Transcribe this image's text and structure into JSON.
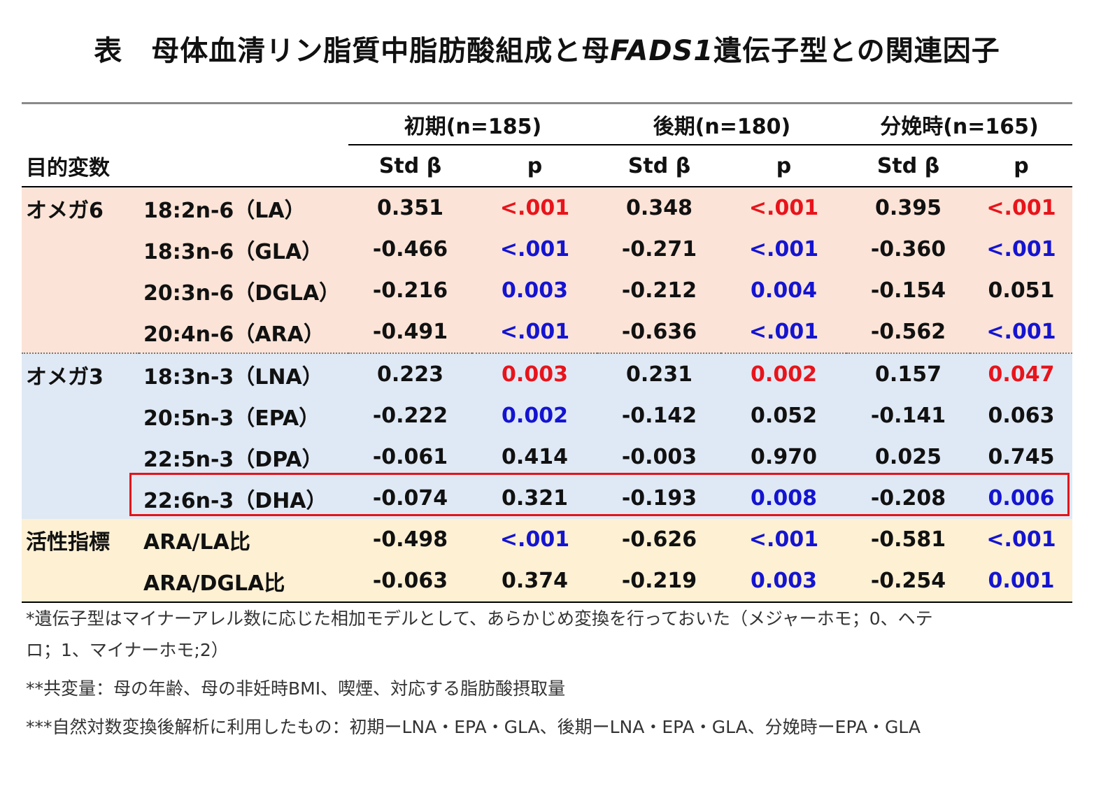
{
  "title": {
    "prefix": "表　母体血清リン脂質中脂肪酸組成と母",
    "gene": "FADS1",
    "suffix": "遺伝子型との関連因子"
  },
  "header": {
    "outcome_label": "目的変数",
    "groups": [
      "初期(n=185)",
      "後期(n=180)",
      "分娩時(n=165)"
    ],
    "std_beta": "Std β",
    "p": "p"
  },
  "colors": {
    "omega6_bg": "#fbe3d7",
    "omega3_bg": "#dfe9f5",
    "activity_bg": "#fdf0d3",
    "sig_pos": "#e8141b",
    "sig_neg": "#1414d0",
    "highlight": "#e3141b"
  },
  "rows": [
    {
      "category": "オメガ6",
      "fa": "18:2n-6（LA）",
      "vals": [
        "0.351",
        "<.001",
        "0.348",
        "<.001",
        "0.395",
        "<.001"
      ],
      "pcol": [
        "red",
        "red",
        "red"
      ]
    },
    {
      "category": "",
      "fa": "18:3n-6（GLA）",
      "vals": [
        "-0.466",
        "<.001",
        "-0.271",
        "<.001",
        "-0.360",
        "<.001"
      ],
      "pcol": [
        "blue",
        "blue",
        "blue"
      ]
    },
    {
      "category": "",
      "fa": "20:3n-6（DGLA）",
      "vals": [
        "-0.216",
        "0.003",
        "-0.212",
        "0.004",
        "-0.154",
        "0.051"
      ],
      "pcol": [
        "blue",
        "blue",
        "blk"
      ]
    },
    {
      "category": "",
      "fa": "20:4n-6（ARA）",
      "vals": [
        "-0.491",
        "<.001",
        "-0.636",
        "<.001",
        "-0.562",
        "<.001"
      ],
      "pcol": [
        "blue",
        "blue",
        "blue"
      ]
    },
    {
      "category": "オメガ3",
      "fa": "18:3n-3（LNA）",
      "vals": [
        "0.223",
        "0.003",
        "0.231",
        "0.002",
        "0.157",
        "0.047"
      ],
      "pcol": [
        "red",
        "red",
        "red"
      ]
    },
    {
      "category": "",
      "fa": "20:5n-3（EPA）",
      "vals": [
        "-0.222",
        "0.002",
        "-0.142",
        "0.052",
        "-0.141",
        "0.063"
      ],
      "pcol": [
        "blue",
        "blk",
        "blk"
      ]
    },
    {
      "category": "",
      "fa": "22:5n-3（DPA）",
      "vals": [
        "-0.061",
        "0.414",
        "-0.003",
        "0.970",
        "0.025",
        "0.745"
      ],
      "pcol": [
        "blk",
        "blk",
        "blk"
      ]
    },
    {
      "category": "",
      "fa": "22:6n-3（DHA）",
      "vals": [
        "-0.074",
        "0.321",
        "-0.193",
        "0.008",
        "-0.208",
        "0.006"
      ],
      "pcol": [
        "blk",
        "blue",
        "blue"
      ]
    },
    {
      "category": "活性指標",
      "fa": "ARA/LA比",
      "vals": [
        "-0.498",
        "<.001",
        "-0.626",
        "<.001",
        "-0.581",
        "<.001"
      ],
      "pcol": [
        "blue",
        "blue",
        "blue"
      ]
    },
    {
      "category": "",
      "fa": "ARA/DGLA比",
      "vals": [
        "-0.063",
        "0.374",
        "-0.219",
        "0.003",
        "-0.254",
        "0.001"
      ],
      "pcol": [
        "blk",
        "blue",
        "blue"
      ]
    }
  ],
  "notes": [
    "*遺伝子型はマイナーアレル数に応じた相加モデルとして、あらかじめ変換を行っておいた（メジャーホモ；0、ヘテ",
    "ロ；1、マイナーホモ;2）",
    "**共変量：母の年齢、母の非妊時BMI、喫煙、対応する脂肪酸摂取量",
    "***自然対数変換後解析に利用したもの：初期ーLNA・EPA・GLA、後期ーLNA・EPA・GLA、分娩時ーEPA・GLA"
  ]
}
